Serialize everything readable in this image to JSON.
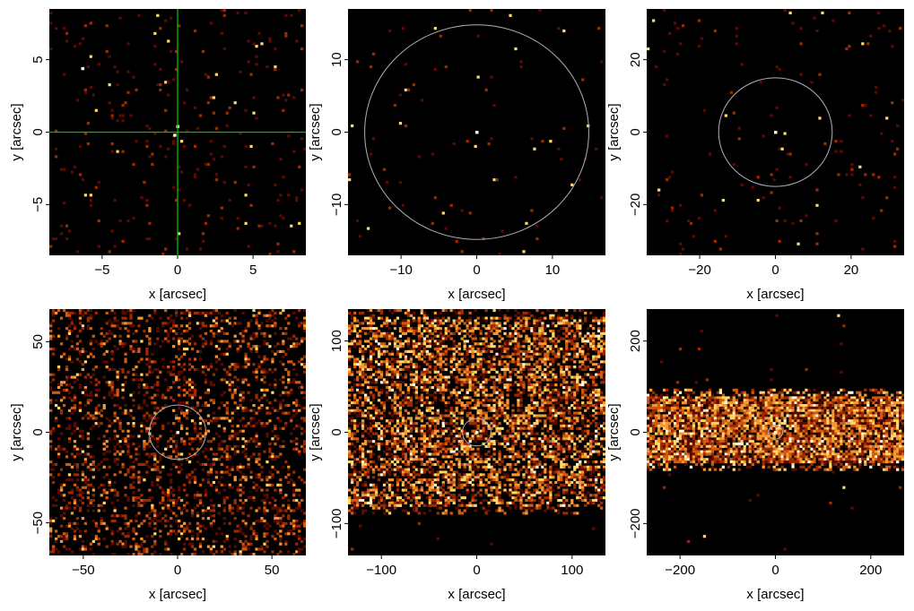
{
  "figure": {
    "xlabel": "x [arcsec]",
    "ylabel": "y [arcsec]",
    "colors": {
      "background": "#000000",
      "circle": "#b0b0b8",
      "crosshair": "#00c000",
      "heat": [
        "#000000",
        "#5a0a00",
        "#9a2a00",
        "#d05a10",
        "#f29a30",
        "#ffd86a",
        "#fffbe0"
      ]
    }
  },
  "chart_data": [
    {
      "type": "heatmap",
      "panel": 1,
      "xlim": [
        -8.5,
        8.5
      ],
      "ylim": [
        -8.5,
        8.5
      ],
      "xticks": [
        -5,
        0,
        5
      ],
      "yticks": [
        -5,
        0,
        5
      ],
      "xtick_labels": [
        "−5",
        "0",
        "5"
      ],
      "ytick_labels": [
        "−5",
        "0",
        "5"
      ],
      "overlay": "crosshair",
      "crosshair_center": [
        0,
        0
      ],
      "fill_density": 0.03,
      "bright_spots": [
        [
          -6.3,
          4.4
        ],
        [
          -0.2,
          -0.2
        ],
        [
          0.0,
          0.4
        ]
      ],
      "band_y": null
    },
    {
      "type": "heatmap",
      "panel": 2,
      "xlim": [
        -17,
        17
      ],
      "ylim": [
        -17,
        17
      ],
      "xticks": [
        -10,
        0,
        10
      ],
      "yticks": [
        -10,
        0,
        10
      ],
      "xtick_labels": [
        "−10",
        "0",
        "10"
      ],
      "ytick_labels": [
        "−10",
        "0",
        "10"
      ],
      "overlay": "circle",
      "circle_center": [
        0,
        0
      ],
      "circle_radius": 14.8,
      "fill_density": 0.01,
      "bright_spots": [
        [
          0,
          0
        ]
      ],
      "band_y": null
    },
    {
      "type": "heatmap",
      "panel": 3,
      "xlim": [
        -34,
        34
      ],
      "ylim": [
        -34,
        34
      ],
      "xticks": [
        -20,
        0,
        20
      ],
      "yticks": [
        -20,
        0,
        20
      ],
      "xtick_labels": [
        "−20",
        "0",
        "20"
      ],
      "ytick_labels": [
        "−20",
        "0",
        "20"
      ],
      "overlay": "circle",
      "circle_center": [
        0,
        0
      ],
      "circle_radius": 15,
      "fill_density": 0.015,
      "bright_spots": [
        [
          0,
          0
        ]
      ],
      "band_y": null
    },
    {
      "type": "heatmap",
      "panel": 4,
      "xlim": [
        -68,
        68
      ],
      "ylim": [
        -68,
        68
      ],
      "xticks": [
        -50,
        0,
        50
      ],
      "yticks": [
        -50,
        0,
        50
      ],
      "xtick_labels": [
        "−50",
        "0",
        "50"
      ],
      "ytick_labels": [
        "−50",
        "0",
        "50"
      ],
      "overlay": "circle",
      "circle_center": [
        0,
        0
      ],
      "circle_radius": 15,
      "fill_density": 0.25,
      "bright_spots": [
        [
          0,
          0
        ]
      ],
      "band_y": null
    },
    {
      "type": "heatmap",
      "panel": 5,
      "xlim": [
        -135,
        135
      ],
      "ylim": [
        -135,
        135
      ],
      "xticks": [
        -100,
        0,
        100
      ],
      "yticks": [
        -100,
        0,
        100
      ],
      "xtick_labels": [
        "−100",
        "0",
        "100"
      ],
      "ytick_labels": [
        "−100",
        "0",
        "100"
      ],
      "overlay": "circle",
      "circle_center": [
        0,
        0
      ],
      "circle_radius": 15,
      "fill_density": 0.55,
      "bright_spots": [
        [
          0,
          0
        ]
      ],
      "band_y": [
        -90,
        135
      ]
    },
    {
      "type": "heatmap",
      "panel": 6,
      "xlim": [
        -270,
        270
      ],
      "ylim": [
        -270,
        270
      ],
      "xticks": [
        -200,
        0,
        200
      ],
      "yticks": [
        -200,
        0,
        200
      ],
      "xtick_labels": [
        "−200",
        "0",
        "200"
      ],
      "ytick_labels": [
        "−200",
        "0",
        "200"
      ],
      "overlay": "circle",
      "circle_center": [
        0,
        0
      ],
      "circle_radius": 15,
      "fill_density": 0.85,
      "bright_spots": [
        [
          0,
          0
        ]
      ],
      "band_y": [
        -85,
        95
      ]
    }
  ]
}
